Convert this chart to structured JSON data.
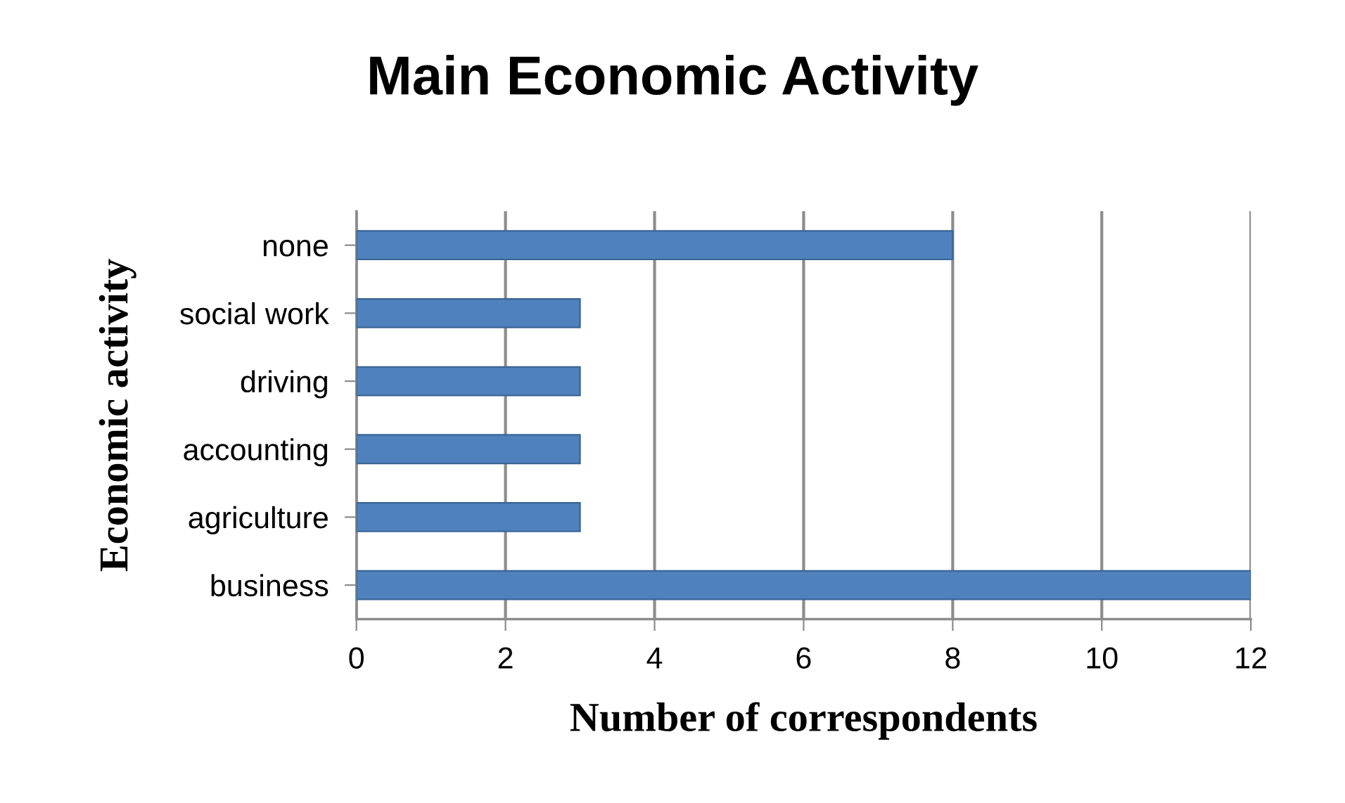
{
  "chart_data": {
    "type": "bar",
    "orientation": "horizontal",
    "title": "Main Economic Activity",
    "xlabel": "Number of correspondents",
    "ylabel": "Economic activity",
    "categories": [
      "none",
      "social work",
      "driving",
      "accounting",
      "agriculture",
      "business"
    ],
    "values": [
      8,
      3,
      3,
      3,
      3,
      12
    ],
    "color": "#4f81bd",
    "xlim": [
      0,
      12
    ],
    "xticks": [
      0,
      2,
      4,
      6,
      8,
      10,
      12
    ],
    "grid": "x",
    "legend": false
  }
}
